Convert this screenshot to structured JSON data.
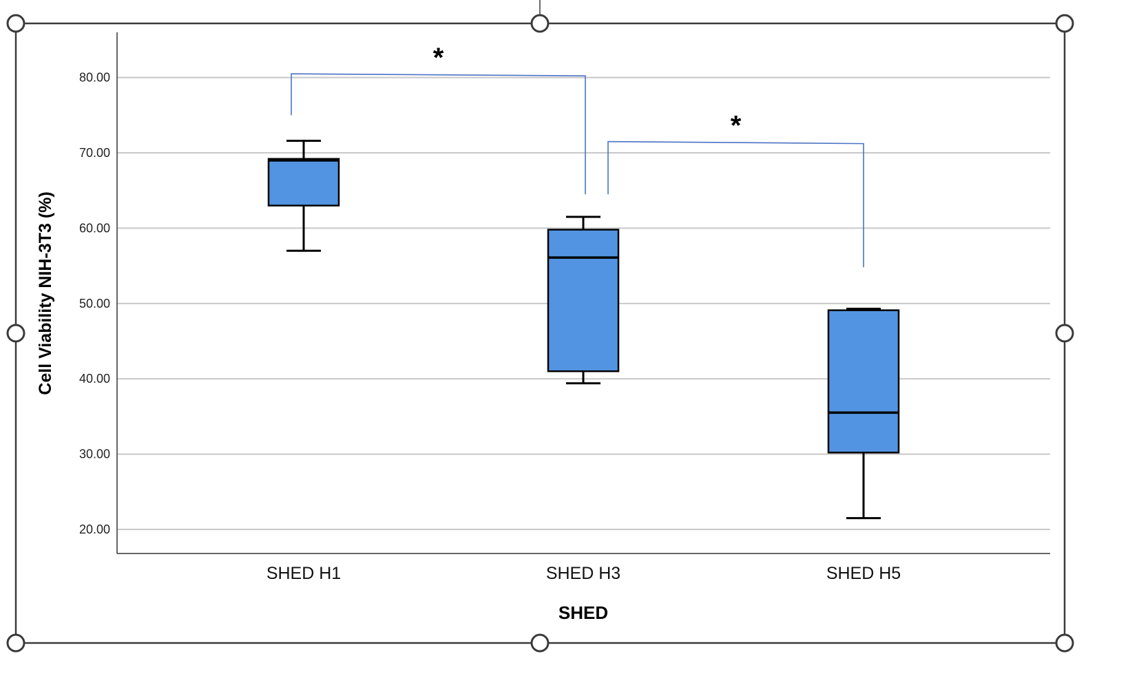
{
  "chart_data": {
    "type": "box",
    "title": "",
    "xlabel": "SHED",
    "ylabel": "Cell Viability NIH-3T3 (%)",
    "ylim": [
      16.8,
      86.0
    ],
    "yticks": [
      "80.00",
      "70.00",
      "60.00",
      "50.00",
      "40.00",
      "30.00",
      "20.00"
    ],
    "ytick_values": [
      80,
      70,
      60,
      50,
      40,
      30,
      20
    ],
    "grid": true,
    "box_color": "#5294e2",
    "categories": [
      "SHED H1",
      "SHED H3",
      "SHED H5"
    ],
    "boxes": [
      {
        "name": "SHED H1",
        "min": 57.0,
        "q1": 63.0,
        "median": 69.0,
        "q3": 69.2,
        "max": 71.6
      },
      {
        "name": "SHED H3",
        "min": 39.4,
        "q1": 41.0,
        "median": 56.1,
        "q3": 59.8,
        "max": 61.5
      },
      {
        "name": "SHED H5",
        "min": 21.5,
        "q1": 30.2,
        "median": 35.5,
        "q3": 49.1,
        "max": 49.3
      }
    ],
    "significance": [
      {
        "from": "SHED H1",
        "to": "SHED H3",
        "label": "*",
        "bracket_y": 80.5,
        "left_drop_to": 75.0,
        "right_drop_to": 64.5
      },
      {
        "from": "SHED H3",
        "to": "SHED H5",
        "label": "*",
        "bracket_y": 71.5,
        "left_drop_to": 64.5,
        "right_drop_to": 54.8
      }
    ],
    "bracket_color": "#4a72c4"
  }
}
